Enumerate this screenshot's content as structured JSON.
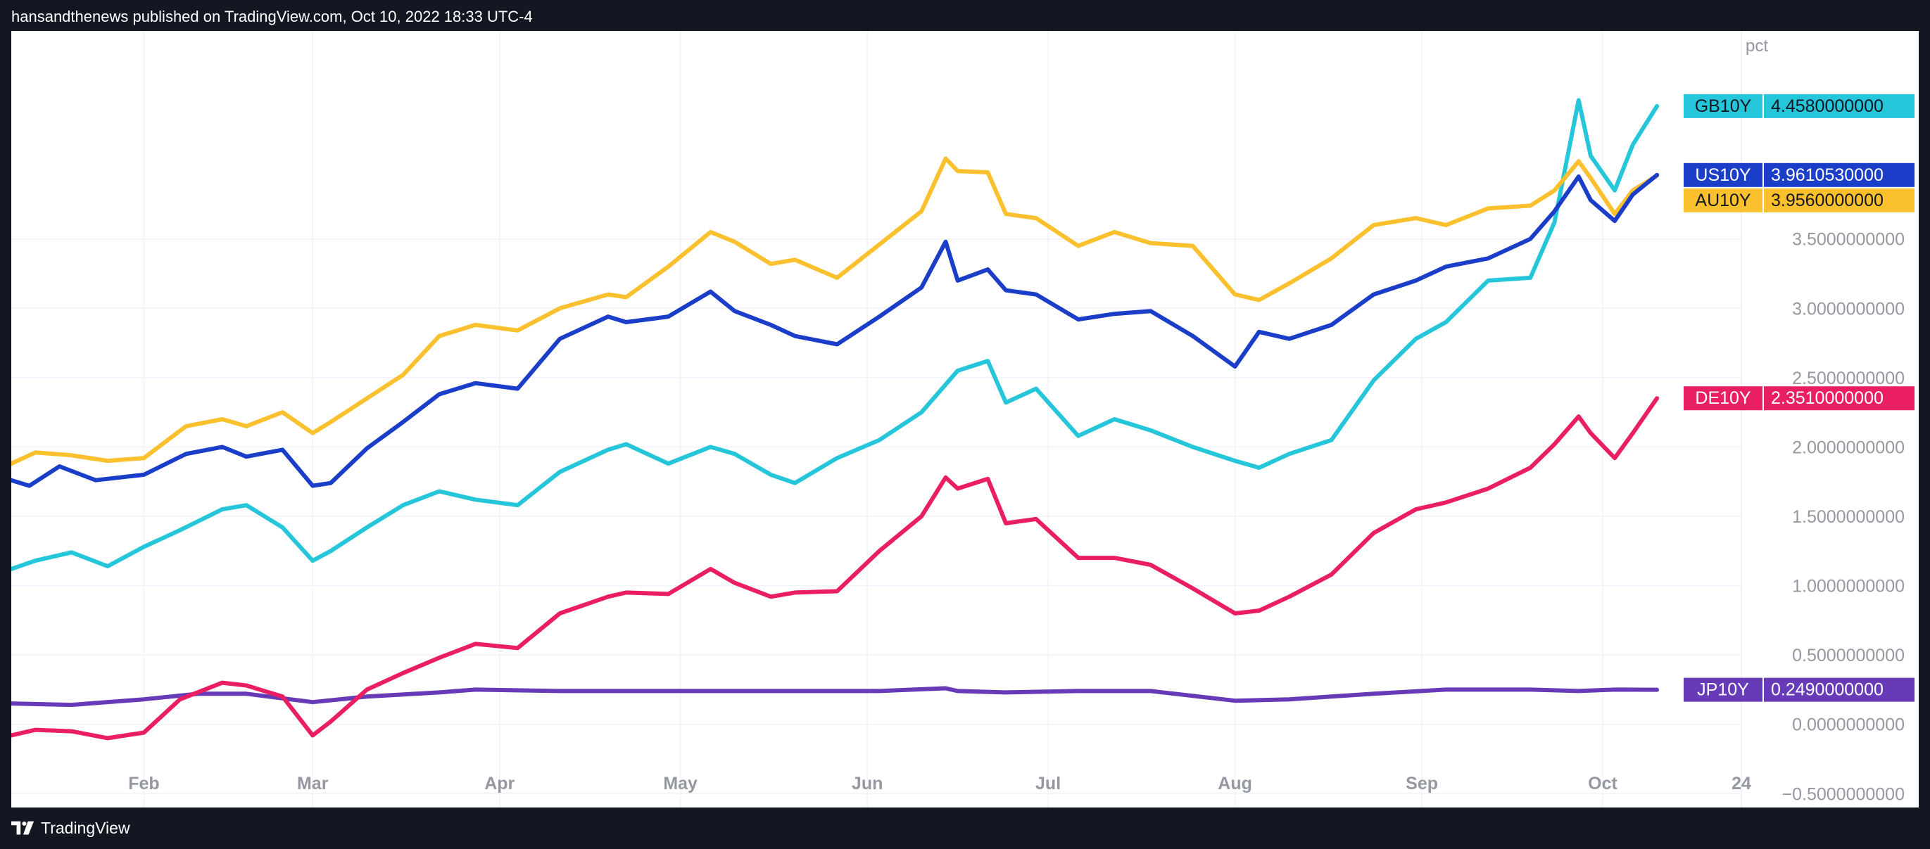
{
  "header": {
    "published_text": "hansandthenews published on TradingView.com, Oct 10, 2022 18:33 UTC-4"
  },
  "footer": {
    "brand": "TradingView"
  },
  "colors": {
    "frame_bg": "#131722",
    "chart_bg": "#ffffff",
    "grid": "#f0f3fa",
    "tick_text": "#9598a1"
  },
  "chart_data": {
    "type": "line",
    "xlim": [
      "2022-01-10",
      "2022-10-24"
    ],
    "ylim": [
      -0.6,
      5.0
    ],
    "ylabel": "pct",
    "x_ticks": [
      {
        "date": "2022-02-01",
        "label": "Feb"
      },
      {
        "date": "2022-03-01",
        "label": "Mar"
      },
      {
        "date": "2022-04-01",
        "label": "Apr"
      },
      {
        "date": "2022-05-01",
        "label": "May"
      },
      {
        "date": "2022-06-01",
        "label": "Jun"
      },
      {
        "date": "2022-07-01",
        "label": "Jul"
      },
      {
        "date": "2022-08-01",
        "label": "Aug"
      },
      {
        "date": "2022-09-01",
        "label": "Sep"
      },
      {
        "date": "2022-10-01",
        "label": "Oct"
      },
      {
        "date": "2022-10-24",
        "label": "24"
      }
    ],
    "y_ticks": [
      {
        "value": 3.5,
        "label": "3.5000000000"
      },
      {
        "value": 3.0,
        "label": "3.0000000000"
      },
      {
        "value": 2.5,
        "label": "2.5000000000"
      },
      {
        "value": 2.0,
        "label": "2.0000000000"
      },
      {
        "value": 1.5,
        "label": "1.5000000000"
      },
      {
        "value": 1.0,
        "label": "1.0000000000"
      },
      {
        "value": 0.5,
        "label": "0.5000000000"
      },
      {
        "value": 0.0,
        "label": "0.0000000000"
      },
      {
        "value": -0.5,
        "label": "−0.5000000000"
      }
    ],
    "grid": true,
    "series": [
      {
        "name": "GB10Y",
        "color": "#26c6da",
        "last_value": 4.458,
        "last_label": "4.4580000000",
        "points": [
          [
            "2022-01-10",
            1.12
          ],
          [
            "2022-01-14",
            1.18
          ],
          [
            "2022-01-20",
            1.24
          ],
          [
            "2022-01-26",
            1.14
          ],
          [
            "2022-02-01",
            1.28
          ],
          [
            "2022-02-07",
            1.4
          ],
          [
            "2022-02-14",
            1.55
          ],
          [
            "2022-02-18",
            1.58
          ],
          [
            "2022-02-24",
            1.42
          ],
          [
            "2022-03-01",
            1.18
          ],
          [
            "2022-03-04",
            1.25
          ],
          [
            "2022-03-10",
            1.42
          ],
          [
            "2022-03-16",
            1.58
          ],
          [
            "2022-03-22",
            1.68
          ],
          [
            "2022-03-28",
            1.62
          ],
          [
            "2022-04-04",
            1.58
          ],
          [
            "2022-04-11",
            1.82
          ],
          [
            "2022-04-19",
            1.98
          ],
          [
            "2022-04-22",
            2.02
          ],
          [
            "2022-04-29",
            1.88
          ],
          [
            "2022-05-06",
            2.0
          ],
          [
            "2022-05-10",
            1.95
          ],
          [
            "2022-05-16",
            1.8
          ],
          [
            "2022-05-20",
            1.74
          ],
          [
            "2022-05-27",
            1.92
          ],
          [
            "2022-06-03",
            2.05
          ],
          [
            "2022-06-10",
            2.25
          ],
          [
            "2022-06-16",
            2.55
          ],
          [
            "2022-06-21",
            2.62
          ],
          [
            "2022-06-24",
            2.32
          ],
          [
            "2022-06-29",
            2.42
          ],
          [
            "2022-07-06",
            2.08
          ],
          [
            "2022-07-12",
            2.2
          ],
          [
            "2022-07-18",
            2.12
          ],
          [
            "2022-07-25",
            2.0
          ],
          [
            "2022-08-01",
            1.9
          ],
          [
            "2022-08-05",
            1.85
          ],
          [
            "2022-08-10",
            1.95
          ],
          [
            "2022-08-17",
            2.05
          ],
          [
            "2022-08-24",
            2.48
          ],
          [
            "2022-08-31",
            2.78
          ],
          [
            "2022-09-05",
            2.9
          ],
          [
            "2022-09-12",
            3.2
          ],
          [
            "2022-09-19",
            3.22
          ],
          [
            "2022-09-23",
            3.62
          ],
          [
            "2022-09-27",
            4.5
          ],
          [
            "2022-09-29",
            4.1
          ],
          [
            "2022-10-03",
            3.85
          ],
          [
            "2022-10-06",
            4.18
          ],
          [
            "2022-10-10",
            4.458
          ]
        ]
      },
      {
        "name": "US10Y",
        "color": "#1a3ec8",
        "last_value": 3.96105,
        "last_label": "3.9610530000",
        "points": [
          [
            "2022-01-10",
            1.76
          ],
          [
            "2022-01-13",
            1.72
          ],
          [
            "2022-01-18",
            1.86
          ],
          [
            "2022-01-24",
            1.76
          ],
          [
            "2022-02-01",
            1.8
          ],
          [
            "2022-02-08",
            1.95
          ],
          [
            "2022-02-14",
            2.0
          ],
          [
            "2022-02-18",
            1.93
          ],
          [
            "2022-02-24",
            1.98
          ],
          [
            "2022-03-01",
            1.72
          ],
          [
            "2022-03-04",
            1.74
          ],
          [
            "2022-03-10",
            1.99
          ],
          [
            "2022-03-16",
            2.18
          ],
          [
            "2022-03-22",
            2.38
          ],
          [
            "2022-03-28",
            2.46
          ],
          [
            "2022-04-04",
            2.42
          ],
          [
            "2022-04-11",
            2.78
          ],
          [
            "2022-04-19",
            2.94
          ],
          [
            "2022-04-22",
            2.9
          ],
          [
            "2022-04-29",
            2.94
          ],
          [
            "2022-05-06",
            3.12
          ],
          [
            "2022-05-10",
            2.98
          ],
          [
            "2022-05-16",
            2.88
          ],
          [
            "2022-05-20",
            2.8
          ],
          [
            "2022-05-27",
            2.74
          ],
          [
            "2022-06-03",
            2.94
          ],
          [
            "2022-06-10",
            3.15
          ],
          [
            "2022-06-14",
            3.48
          ],
          [
            "2022-06-16",
            3.2
          ],
          [
            "2022-06-21",
            3.28
          ],
          [
            "2022-06-24",
            3.13
          ],
          [
            "2022-06-29",
            3.1
          ],
          [
            "2022-07-06",
            2.92
          ],
          [
            "2022-07-12",
            2.96
          ],
          [
            "2022-07-18",
            2.98
          ],
          [
            "2022-07-25",
            2.8
          ],
          [
            "2022-08-01",
            2.58
          ],
          [
            "2022-08-05",
            2.83
          ],
          [
            "2022-08-10",
            2.78
          ],
          [
            "2022-08-17",
            2.88
          ],
          [
            "2022-08-24",
            3.1
          ],
          [
            "2022-08-31",
            3.2
          ],
          [
            "2022-09-05",
            3.3
          ],
          [
            "2022-09-12",
            3.36
          ],
          [
            "2022-09-19",
            3.5
          ],
          [
            "2022-09-23",
            3.7
          ],
          [
            "2022-09-27",
            3.95
          ],
          [
            "2022-09-29",
            3.78
          ],
          [
            "2022-10-03",
            3.63
          ],
          [
            "2022-10-06",
            3.82
          ],
          [
            "2022-10-10",
            3.961
          ]
        ]
      },
      {
        "name": "AU10Y",
        "color": "#fbc02d",
        "last_value": 3.956,
        "last_label": "3.9560000000",
        "points": [
          [
            "2022-01-10",
            1.88
          ],
          [
            "2022-01-14",
            1.96
          ],
          [
            "2022-01-20",
            1.94
          ],
          [
            "2022-01-26",
            1.9
          ],
          [
            "2022-02-01",
            1.92
          ],
          [
            "2022-02-08",
            2.15
          ],
          [
            "2022-02-14",
            2.2
          ],
          [
            "2022-02-18",
            2.15
          ],
          [
            "2022-02-24",
            2.25
          ],
          [
            "2022-03-01",
            2.1
          ],
          [
            "2022-03-04",
            2.18
          ],
          [
            "2022-03-10",
            2.35
          ],
          [
            "2022-03-16",
            2.52
          ],
          [
            "2022-03-22",
            2.8
          ],
          [
            "2022-03-28",
            2.88
          ],
          [
            "2022-04-04",
            2.84
          ],
          [
            "2022-04-11",
            3.0
          ],
          [
            "2022-04-19",
            3.1
          ],
          [
            "2022-04-22",
            3.08
          ],
          [
            "2022-04-29",
            3.3
          ],
          [
            "2022-05-06",
            3.55
          ],
          [
            "2022-05-10",
            3.48
          ],
          [
            "2022-05-16",
            3.32
          ],
          [
            "2022-05-20",
            3.35
          ],
          [
            "2022-05-27",
            3.22
          ],
          [
            "2022-06-03",
            3.46
          ],
          [
            "2022-06-10",
            3.7
          ],
          [
            "2022-06-14",
            4.08
          ],
          [
            "2022-06-16",
            3.99
          ],
          [
            "2022-06-21",
            3.98
          ],
          [
            "2022-06-24",
            3.68
          ],
          [
            "2022-06-29",
            3.65
          ],
          [
            "2022-07-06",
            3.45
          ],
          [
            "2022-07-12",
            3.55
          ],
          [
            "2022-07-18",
            3.47
          ],
          [
            "2022-07-25",
            3.45
          ],
          [
            "2022-08-01",
            3.1
          ],
          [
            "2022-08-05",
            3.06
          ],
          [
            "2022-08-10",
            3.18
          ],
          [
            "2022-08-17",
            3.36
          ],
          [
            "2022-08-24",
            3.6
          ],
          [
            "2022-08-31",
            3.65
          ],
          [
            "2022-09-05",
            3.6
          ],
          [
            "2022-09-12",
            3.72
          ],
          [
            "2022-09-19",
            3.74
          ],
          [
            "2022-09-23",
            3.85
          ],
          [
            "2022-09-27",
            4.06
          ],
          [
            "2022-09-29",
            3.94
          ],
          [
            "2022-10-03",
            3.68
          ],
          [
            "2022-10-06",
            3.85
          ],
          [
            "2022-10-10",
            3.956
          ]
        ]
      },
      {
        "name": "DE10Y",
        "color": "#e91e63",
        "last_value": 2.351,
        "last_label": "2.3510000000",
        "points": [
          [
            "2022-01-10",
            -0.08
          ],
          [
            "2022-01-14",
            -0.04
          ],
          [
            "2022-01-20",
            -0.05
          ],
          [
            "2022-01-26",
            -0.1
          ],
          [
            "2022-02-01",
            -0.06
          ],
          [
            "2022-02-07",
            0.18
          ],
          [
            "2022-02-14",
            0.3
          ],
          [
            "2022-02-18",
            0.28
          ],
          [
            "2022-02-24",
            0.2
          ],
          [
            "2022-03-01",
            -0.08
          ],
          [
            "2022-03-04",
            0.02
          ],
          [
            "2022-03-10",
            0.25
          ],
          [
            "2022-03-16",
            0.37
          ],
          [
            "2022-03-22",
            0.48
          ],
          [
            "2022-03-28",
            0.58
          ],
          [
            "2022-04-04",
            0.55
          ],
          [
            "2022-04-11",
            0.8
          ],
          [
            "2022-04-19",
            0.92
          ],
          [
            "2022-04-22",
            0.95
          ],
          [
            "2022-04-29",
            0.94
          ],
          [
            "2022-05-06",
            1.12
          ],
          [
            "2022-05-10",
            1.02
          ],
          [
            "2022-05-16",
            0.92
          ],
          [
            "2022-05-20",
            0.95
          ],
          [
            "2022-05-27",
            0.96
          ],
          [
            "2022-06-03",
            1.25
          ],
          [
            "2022-06-10",
            1.5
          ],
          [
            "2022-06-14",
            1.78
          ],
          [
            "2022-06-16",
            1.7
          ],
          [
            "2022-06-21",
            1.77
          ],
          [
            "2022-06-24",
            1.45
          ],
          [
            "2022-06-29",
            1.48
          ],
          [
            "2022-07-06",
            1.2
          ],
          [
            "2022-07-12",
            1.2
          ],
          [
            "2022-07-18",
            1.15
          ],
          [
            "2022-07-25",
            0.98
          ],
          [
            "2022-08-01",
            0.8
          ],
          [
            "2022-08-05",
            0.82
          ],
          [
            "2022-08-10",
            0.92
          ],
          [
            "2022-08-17",
            1.08
          ],
          [
            "2022-08-24",
            1.38
          ],
          [
            "2022-08-31",
            1.55
          ],
          [
            "2022-09-05",
            1.6
          ],
          [
            "2022-09-12",
            1.7
          ],
          [
            "2022-09-19",
            1.85
          ],
          [
            "2022-09-23",
            2.02
          ],
          [
            "2022-09-27",
            2.22
          ],
          [
            "2022-09-29",
            2.1
          ],
          [
            "2022-10-03",
            1.92
          ],
          [
            "2022-10-06",
            2.1
          ],
          [
            "2022-10-10",
            2.351
          ]
        ]
      },
      {
        "name": "JP10Y",
        "color": "#673ab7",
        "last_value": 0.249,
        "last_label": "0.2490000000",
        "points": [
          [
            "2022-01-10",
            0.15
          ],
          [
            "2022-01-20",
            0.14
          ],
          [
            "2022-02-01",
            0.18
          ],
          [
            "2022-02-10",
            0.22
          ],
          [
            "2022-02-18",
            0.22
          ],
          [
            "2022-03-01",
            0.16
          ],
          [
            "2022-03-10",
            0.2
          ],
          [
            "2022-03-22",
            0.23
          ],
          [
            "2022-03-28",
            0.25
          ],
          [
            "2022-04-11",
            0.24
          ],
          [
            "2022-04-22",
            0.24
          ],
          [
            "2022-05-06",
            0.24
          ],
          [
            "2022-05-20",
            0.24
          ],
          [
            "2022-06-03",
            0.24
          ],
          [
            "2022-06-14",
            0.26
          ],
          [
            "2022-06-16",
            0.24
          ],
          [
            "2022-06-24",
            0.23
          ],
          [
            "2022-07-06",
            0.24
          ],
          [
            "2022-07-18",
            0.24
          ],
          [
            "2022-08-01",
            0.17
          ],
          [
            "2022-08-10",
            0.18
          ],
          [
            "2022-08-24",
            0.22
          ],
          [
            "2022-09-05",
            0.25
          ],
          [
            "2022-09-19",
            0.25
          ],
          [
            "2022-09-27",
            0.24
          ],
          [
            "2022-10-03",
            0.25
          ],
          [
            "2022-10-10",
            0.249
          ]
        ]
      }
    ]
  }
}
